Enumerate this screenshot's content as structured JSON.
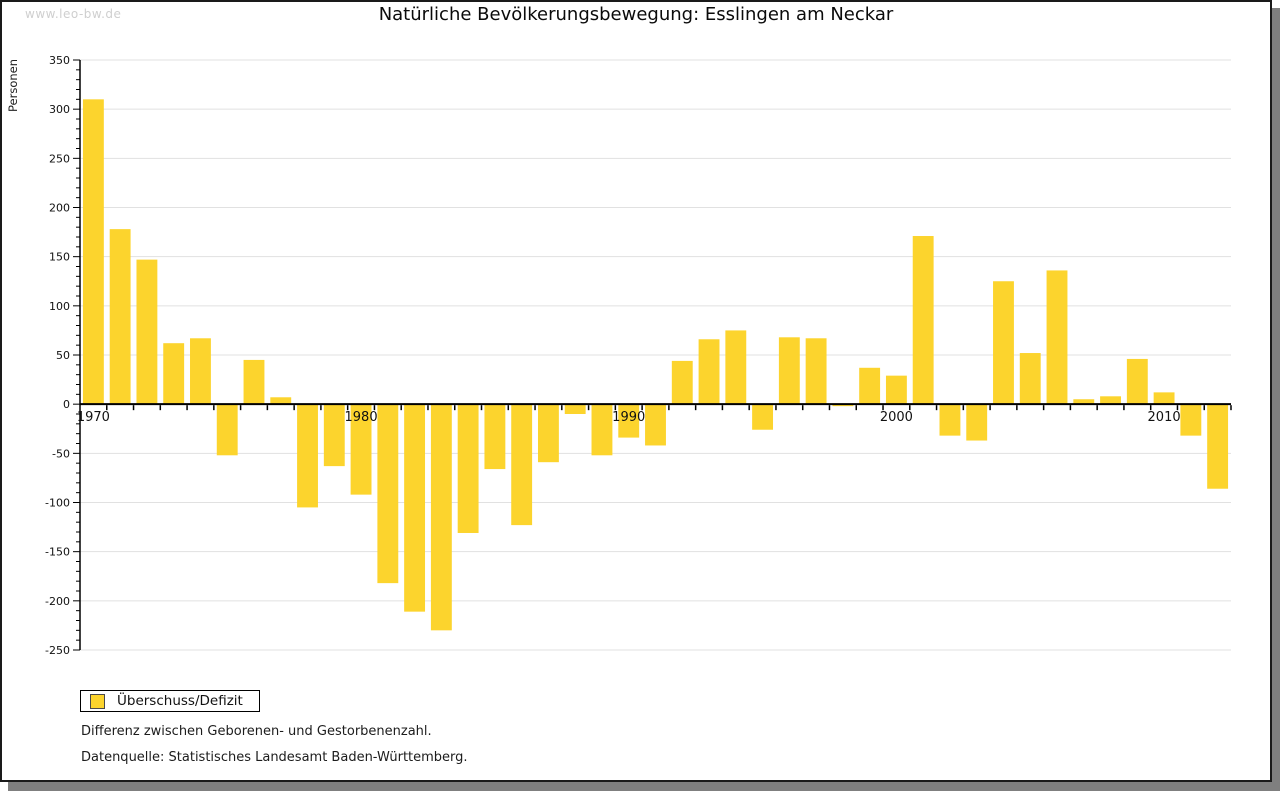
{
  "watermark": "www.leo-bw.de",
  "notes": [
    "Differenz zwischen Geborenen- und Gestorbenenzahl.",
    "Datenquelle: Statistisches Landesamt Baden-Württemberg."
  ],
  "colors": {
    "bar": "#fcd42d",
    "grid": "#e1e1e1",
    "axis": "#000000",
    "tick_label": "#111111",
    "watermark": "#cfcfcf",
    "shadow": "#7f7f7f",
    "swatch_border": "#4a4a4a"
  },
  "chart_data": {
    "type": "bar",
    "title": "Natürliche Bevölkerungsbewegung: Esslingen am Neckar",
    "xlabel": "",
    "ylabel": "Personen",
    "series_name": "Überschuss/Defizit",
    "ylim": [
      -250,
      350
    ],
    "ytick_step": 50,
    "yminor_step": 10,
    "ytick_labels": [
      350,
      300,
      250,
      200,
      150,
      100,
      50,
      0,
      -50,
      -100,
      -150,
      -200,
      -250
    ],
    "xtick_years": [
      1970,
      1980,
      1990,
      2000,
      2010
    ],
    "grid": true,
    "legend_position": "bottom-left",
    "x": [
      1970,
      1971,
      1972,
      1973,
      1974,
      1975,
      1976,
      1977,
      1978,
      1979,
      1980,
      1981,
      1982,
      1983,
      1984,
      1985,
      1986,
      1987,
      1988,
      1989,
      1990,
      1991,
      1992,
      1993,
      1994,
      1995,
      1996,
      1997,
      1998,
      1999,
      2000,
      2001,
      2002,
      2003,
      2004,
      2005,
      2006,
      2007,
      2008,
      2009,
      2010,
      2011,
      2012
    ],
    "values": [
      310,
      178,
      147,
      62,
      67,
      -52,
      45,
      7,
      -105,
      -63,
      -92,
      -182,
      -211,
      -230,
      -131,
      -66,
      -123,
      -59,
      -10,
      -52,
      -34,
      -42,
      44,
      66,
      75,
      -26,
      68,
      67,
      -2,
      37,
      29,
      171,
      -32,
      -37,
      125,
      52,
      136,
      5,
      8,
      46,
      12,
      -32,
      -86
    ]
  }
}
